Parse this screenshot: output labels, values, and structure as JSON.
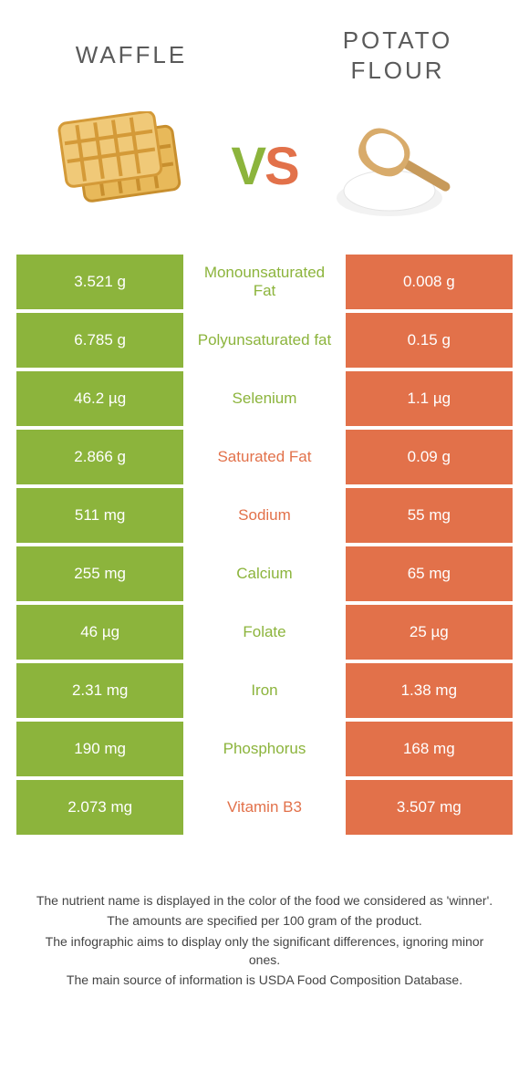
{
  "colors": {
    "left": "#8cb43c",
    "right": "#e2714a",
    "mid_text_left": "#8cb43c",
    "mid_text_right": "#e2714a",
    "title_text": "#5a5a5a",
    "row_gap_bg": "#ffffff"
  },
  "header": {
    "left_title": "Waffle",
    "right_title": "Potato flour",
    "vs_v": "V",
    "vs_s": "S"
  },
  "rows": [
    {
      "left": "3.521 g",
      "mid": "Monounsaturated Fat",
      "right": "0.008 g",
      "winner": "left"
    },
    {
      "left": "6.785 g",
      "mid": "Polyunsaturated fat",
      "right": "0.15 g",
      "winner": "left"
    },
    {
      "left": "46.2 µg",
      "mid": "Selenium",
      "right": "1.1 µg",
      "winner": "left"
    },
    {
      "left": "2.866 g",
      "mid": "Saturated Fat",
      "right": "0.09 g",
      "winner": "right"
    },
    {
      "left": "511 mg",
      "mid": "Sodium",
      "right": "55 mg",
      "winner": "right"
    },
    {
      "left": "255 mg",
      "mid": "Calcium",
      "right": "65 mg",
      "winner": "left"
    },
    {
      "left": "46 µg",
      "mid": "Folate",
      "right": "25 µg",
      "winner": "left"
    },
    {
      "left": "2.31 mg",
      "mid": "Iron",
      "right": "1.38 mg",
      "winner": "left"
    },
    {
      "left": "190 mg",
      "mid": "Phosphorus",
      "right": "168 mg",
      "winner": "left"
    },
    {
      "left": "2.073 mg",
      "mid": "Vitamin B3",
      "right": "3.507 mg",
      "winner": "right"
    }
  ],
  "footer": [
    "The nutrient name is displayed in the color of the food we considered as 'winner'.",
    "The amounts are specified per 100 gram of the product.",
    "The infographic aims to display only the significant differences, ignoring minor ones.",
    "The main source of information is USDA Food Composition Database."
  ]
}
